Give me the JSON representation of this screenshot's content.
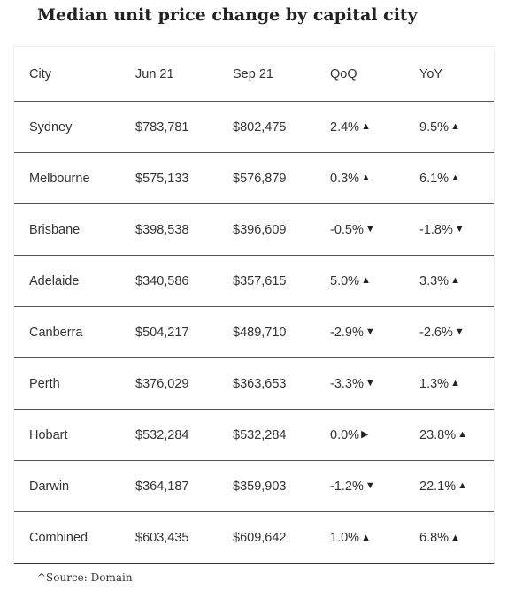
{
  "title": "Median unit price change by capital city",
  "table": {
    "headers": [
      "City",
      "Jun 21",
      "Sep 21",
      "QoQ",
      "YoY"
    ],
    "rows": [
      {
        "city": "Sydney",
        "jun21": "$783,781",
        "sep21": "$802,475",
        "qoq": "2.4%",
        "qoq_dir": "up",
        "yoy": "9.5%",
        "yoy_dir": "up"
      },
      {
        "city": "Melbourne",
        "jun21": "$575,133",
        "sep21": "$576,879",
        "qoq": "0.3%",
        "qoq_dir": "up",
        "yoy": "6.1%",
        "yoy_dir": "up"
      },
      {
        "city": "Brisbane",
        "jun21": "$398,538",
        "sep21": "$396,609",
        "qoq": "-0.5%",
        "qoq_dir": "down",
        "yoy": "-1.8%",
        "yoy_dir": "down"
      },
      {
        "city": "Adelaide",
        "jun21": "$340,586",
        "sep21": "$357,615",
        "qoq": "5.0%",
        "qoq_dir": "up",
        "yoy": "3.3%",
        "yoy_dir": "up"
      },
      {
        "city": "Canberra",
        "jun21": "$504,217",
        "sep21": "$489,710",
        "qoq": "-2.9%",
        "qoq_dir": "down",
        "yoy": "-2.6%",
        "yoy_dir": "down"
      },
      {
        "city": "Perth",
        "jun21": "$376,029",
        "sep21": "$363,653",
        "qoq": "-3.3%",
        "qoq_dir": "down",
        "yoy": "1.3%",
        "yoy_dir": "up"
      },
      {
        "city": "Hobart",
        "jun21": "$532,284",
        "sep21": "$532,284",
        "qoq": "0.0%",
        "qoq_dir": "flat",
        "yoy": "23.8%",
        "yoy_dir": "up"
      },
      {
        "city": "Darwin",
        "jun21": "$364,187",
        "sep21": "$359,903",
        "qoq": "-1.2%",
        "qoq_dir": "down",
        "yoy": "22.1%",
        "yoy_dir": "up"
      },
      {
        "city": "Combined",
        "jun21": "$603,435",
        "sep21": "$609,642",
        "qoq": "1.0%",
        "qoq_dir": "up",
        "yoy": "6.8%",
        "yoy_dir": "up"
      }
    ]
  },
  "source": "^Source: Domain",
  "colors": {
    "text": "#333333",
    "title": "#222222",
    "row_divider": "#555555",
    "bottom_rule": "#333333"
  }
}
